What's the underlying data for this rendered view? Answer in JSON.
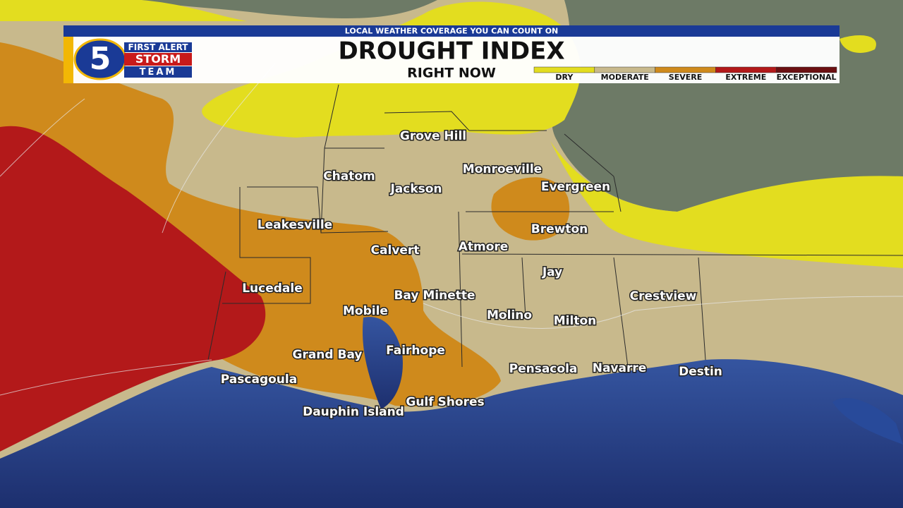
{
  "banner": "LOCAL WEATHER COVERAGE YOU CAN COUNT ON",
  "logo": {
    "number": "5",
    "line1": "FIRST ALERT",
    "line2": "STORM",
    "line3": "TEAM"
  },
  "title": "DROUGHT INDEX",
  "subtitle": "RIGHT NOW",
  "legend": [
    {
      "label": "DRY",
      "color": "#e3dd1f"
    },
    {
      "label": "MODERATE",
      "color": "#c8b98c"
    },
    {
      "label": "SEVERE",
      "color": "#cf8a1c"
    },
    {
      "label": "EXTREME",
      "color": "#b3191a"
    },
    {
      "label": "EXCEPTIONAL",
      "color": "#6b1012"
    }
  ],
  "cities": [
    "Grove Hill",
    "Chatom",
    "Jackson",
    "Monroeville",
    "Evergreen",
    "Leakesville",
    "Brewton",
    "Calvert",
    "Atmore",
    "Jay",
    "Lucedale",
    "Bay Minette",
    "Crestview",
    "Mobile",
    "Molino",
    "Milton",
    "Grand Bay",
    "Fairhope",
    "Pensacola",
    "Navarre",
    "Destin",
    "Pascagoula",
    "Gulf Shores",
    "Dauphin Island"
  ]
}
